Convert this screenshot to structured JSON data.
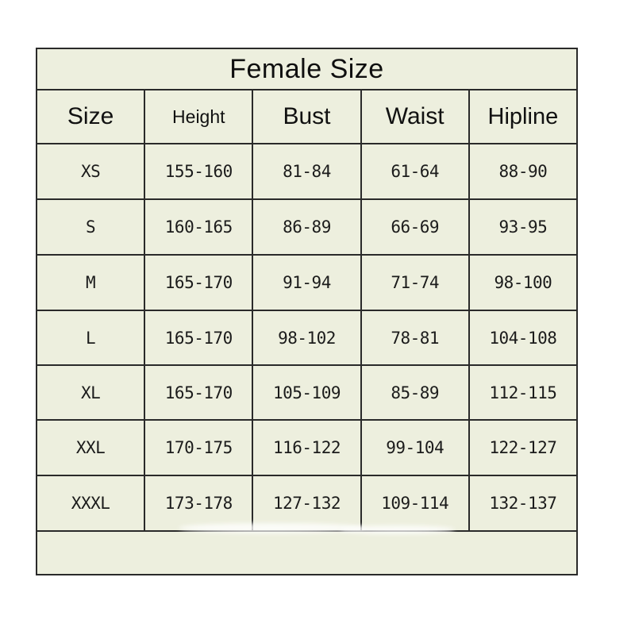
{
  "table": {
    "title": "Female Size",
    "columns": [
      "Size",
      "Height",
      "Bust",
      "Waist",
      "Hipline"
    ],
    "rows": [
      [
        "XS",
        "155-160",
        "81-84",
        "61-64",
        "88-90"
      ],
      [
        "S",
        "160-165",
        "86-89",
        "66-69",
        "93-95"
      ],
      [
        "M",
        "165-170",
        "91-94",
        "71-74",
        "98-100"
      ],
      [
        "L",
        "165-170",
        "98-102",
        "78-81",
        "104-108"
      ],
      [
        "XL",
        "165-170",
        "105-109",
        "85-89",
        "112-115"
      ],
      [
        "XXL",
        "170-175",
        "116-122",
        "99-104",
        "122-127"
      ],
      [
        "XXXL",
        "173-178",
        "127-132",
        "109-114",
        "132-137"
      ]
    ],
    "colors": {
      "cell_background": "#edefde",
      "grid_line": "#2a2a2a",
      "text": "#151515",
      "page_background": "#ffffff"
    }
  }
}
